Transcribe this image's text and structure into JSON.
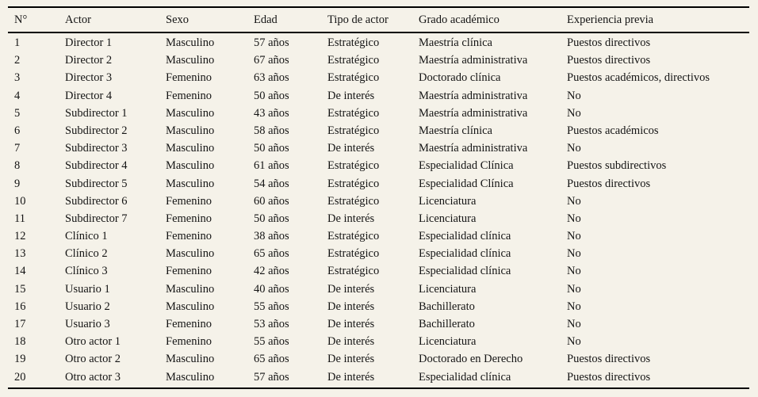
{
  "colors": {
    "background": "#f5f2e9",
    "text": "#141414",
    "rule": "#000000"
  },
  "table": {
    "columns": [
      "N°",
      "Actor",
      "Sexo",
      "Edad",
      "Tipo de actor",
      "Grado académico",
      "Experiencia previa"
    ],
    "rows": [
      [
        "1",
        "Director 1",
        "Masculino",
        "57 años",
        "Estratégico",
        "Maestría clínica",
        "Puestos directivos"
      ],
      [
        "2",
        "Director 2",
        "Masculino",
        "67 años",
        "Estratégico",
        "Maestría administrativa",
        "Puestos directivos"
      ],
      [
        "3",
        "Director 3",
        "Femenino",
        "63 años",
        "Estratégico",
        "Doctorado clínica",
        "Puestos académicos, directivos"
      ],
      [
        "4",
        "Director 4",
        "Femenino",
        "50 años",
        "De interés",
        "Maestría administrativa",
        "No"
      ],
      [
        "5",
        "Subdirector 1",
        "Masculino",
        "43 años",
        "Estratégico",
        "Maestría administrativa",
        "No"
      ],
      [
        "6",
        "Subdirector 2",
        "Masculino",
        "58 años",
        "Estratégico",
        "Maestría clínica",
        "Puestos académicos"
      ],
      [
        "7",
        "Subdirector 3",
        "Masculino",
        "50 años",
        "De interés",
        "Maestría administrativa",
        "No"
      ],
      [
        "8",
        "Subdirector 4",
        "Masculino",
        "61 años",
        "Estratégico",
        "Especialidad Clínica",
        "Puestos subdirectivos"
      ],
      [
        "9",
        "Subdirector 5",
        "Masculino",
        "54 años",
        "Estratégico",
        "Especialidad Clínica",
        "Puestos directivos"
      ],
      [
        "10",
        "Subdirector 6",
        "Femenino",
        "60 años",
        "Estratégico",
        "Licenciatura",
        "No"
      ],
      [
        "11",
        "Subdirector 7",
        "Femenino",
        "50 años",
        "De interés",
        "Licenciatura",
        "No"
      ],
      [
        "12",
        "Clínico 1",
        "Femenino",
        "38 años",
        "Estratégico",
        "Especialidad clínica",
        "No"
      ],
      [
        "13",
        "Clínico 2",
        "Masculino",
        "65 años",
        "Estratégico",
        "Especialidad clínica",
        "No"
      ],
      [
        "14",
        "Clínico 3",
        "Femenino",
        "42 años",
        "Estratégico",
        "Especialidad clínica",
        "No"
      ],
      [
        "15",
        "Usuario 1",
        "Masculino",
        "40 años",
        "De interés",
        "Licenciatura",
        "No"
      ],
      [
        "16",
        "Usuario 2",
        "Masculino",
        "55 años",
        "De interés",
        "Bachillerato",
        "No"
      ],
      [
        "17",
        "Usuario 3",
        "Femenino",
        "53 años",
        "De interés",
        "Bachillerato",
        "No"
      ],
      [
        "18",
        "Otro actor 1",
        "Femenino",
        "55 años",
        "De interés",
        "Licenciatura",
        "No"
      ],
      [
        "19",
        "Otro actor 2",
        "Masculino",
        "65 años",
        "De interés",
        "Doctorado en Derecho",
        "Puestos directivos"
      ],
      [
        "20",
        "Otro actor 3",
        "Masculino",
        "57 años",
        "De interés",
        "Especialidad clínica",
        "Puestos directivos"
      ]
    ]
  }
}
